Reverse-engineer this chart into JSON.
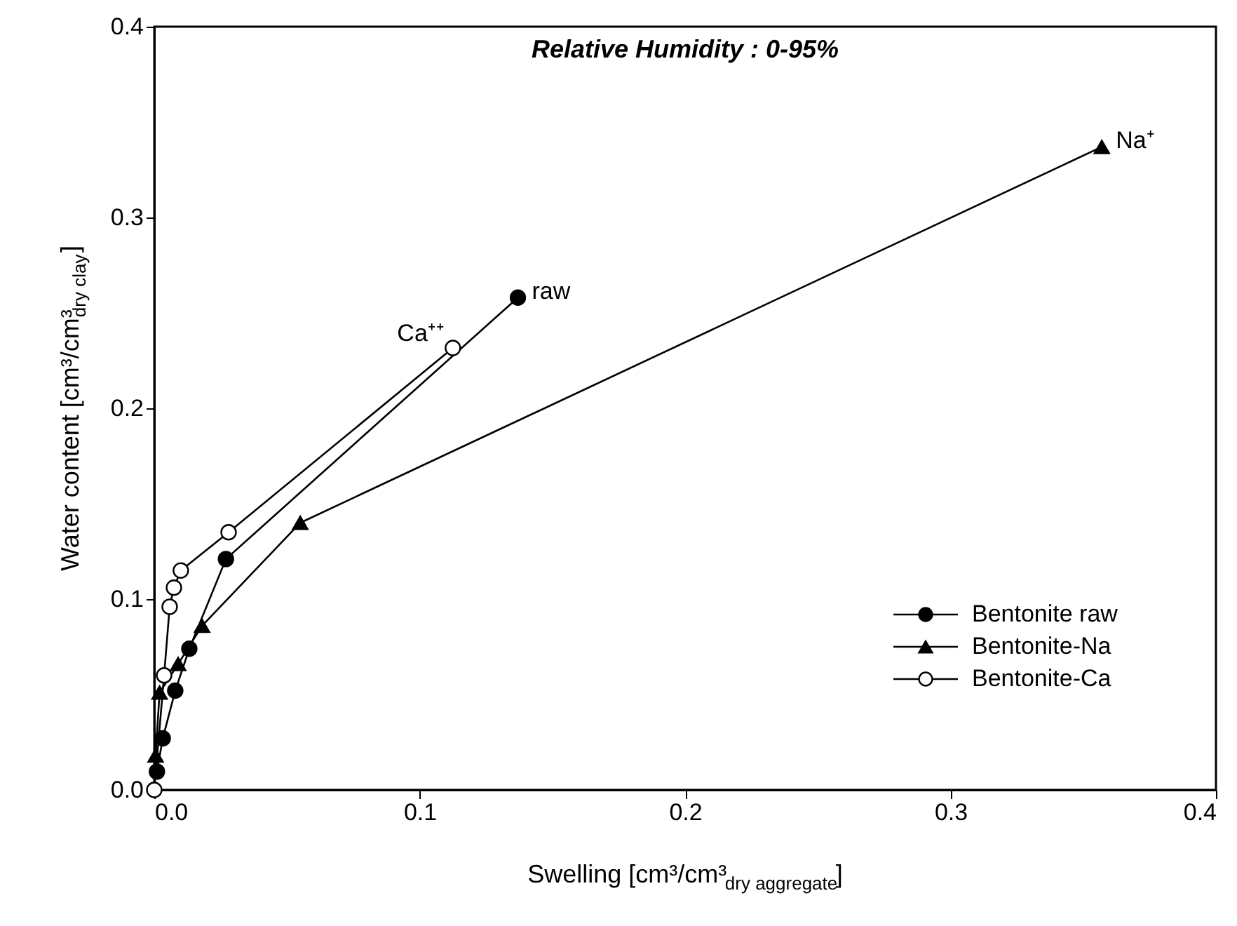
{
  "chart_data": {
    "type": "line",
    "title": "Relative Humidity : 0-95%",
    "xlabel": "Swelling [cm³/cm³$_{dry aggregate}$]",
    "ylabel": "Water content [cm³/cm³$_{dry clay}$]",
    "xlim": [
      0,
      0.4
    ],
    "xticks": [
      {
        "value": 0,
        "label": "0.0"
      },
      0.1,
      0.2,
      0.3,
      0.4
    ],
    "ylim": [
      0,
      0.4
    ],
    "yticks": [
      {
        "value": 0,
        "label": "0.0"
      },
      0.1,
      0.2,
      0.3,
      0.4
    ],
    "grid": false,
    "legend": "bottom right",
    "line_style": "solid",
    "series": [
      {
        "name": "Bentonite raw",
        "color": "#000000",
        "marker": "circle",
        "x": [
          0.001,
          0.0032,
          0.0079,
          0.0132,
          0.027,
          0.137
        ],
        "values": [
          0.0096,
          0.027,
          0.052,
          0.074,
          0.121,
          0.258
        ]
      },
      {
        "name": "Bentonite-Na",
        "color": "#000000",
        "marker": "triangle",
        "x": [
          0.0005,
          0.002,
          0.009,
          0.018,
          0.055,
          0.357
        ],
        "values": [
          0.018,
          0.051,
          0.066,
          0.086,
          0.14,
          0.337
        ]
      },
      {
        "name": "Bentonite-Ca",
        "color": "#ffffff",
        "marker": "circle",
        "x": [
          0.0,
          0.0037,
          0.0058,
          0.0074,
          0.01,
          0.028,
          0.1125
        ],
        "values": [
          0.0,
          0.06,
          0.096,
          0.106,
          0.115,
          0.135,
          0.2316
        ]
      }
    ],
    "annotations": [
      {
        "text": "raw",
        "x": 0.137,
        "y": 0.258
      },
      {
        "text": "Ca⁺⁺",
        "x": 0.1125,
        "y": 0.2316
      },
      {
        "text": "Na⁺",
        "x": 0.357,
        "y": 0.337
      }
    ]
  }
}
